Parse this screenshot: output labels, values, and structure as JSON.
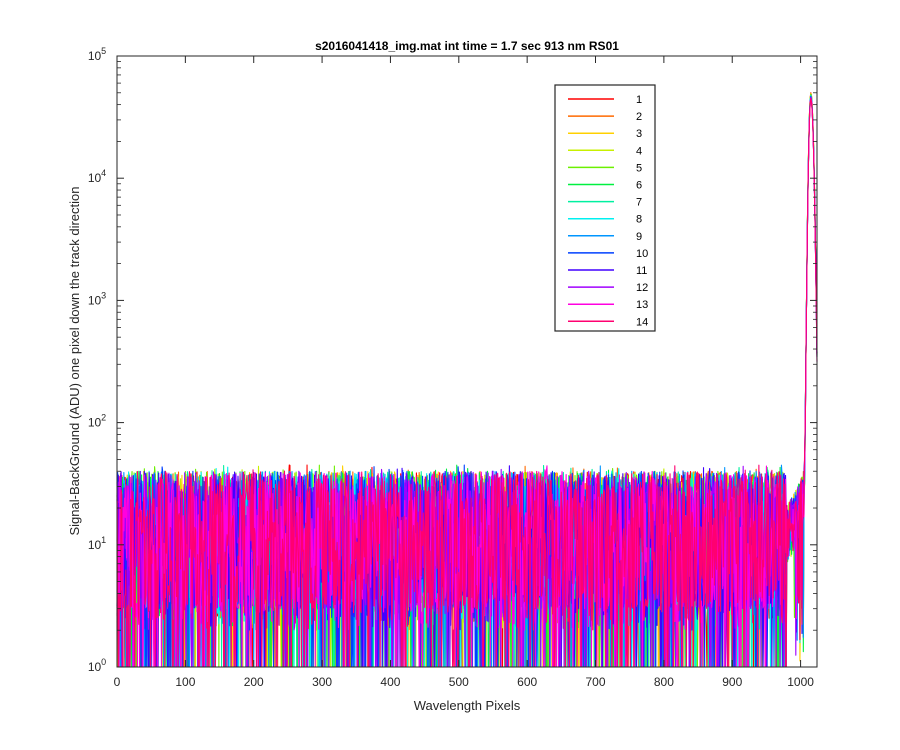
{
  "chart_data": {
    "type": "line",
    "title": "s2016041418_img.mat int time = 1.7 sec  913 nm RS01",
    "xlabel": "Wavelength Pixels",
    "ylabel": "Signal-BackGround (ADU) one pixel down the track direction",
    "xlim": [
      0,
      1024
    ],
    "ylim": [
      1,
      100000
    ],
    "yscale": "log",
    "x_ticks": [
      "0",
      "100",
      "200",
      "300",
      "400",
      "500",
      "600",
      "700",
      "800",
      "900",
      "1000"
    ],
    "y_ticks": [
      {
        "base": "10",
        "exp": "0"
      },
      {
        "base": "10",
        "exp": "1"
      },
      {
        "base": "10",
        "exp": "2"
      },
      {
        "base": "10",
        "exp": "3"
      },
      {
        "base": "10",
        "exp": "4"
      },
      {
        "base": "10",
        "exp": "5"
      }
    ],
    "grid": false,
    "legend_position": "top-right",
    "noise_floor_range": [
      1,
      45
    ],
    "peak": {
      "x": 1015,
      "y": 50000
    },
    "series": [
      {
        "name": "1",
        "color": "#ff0000"
      },
      {
        "name": "2",
        "color": "#ff6a00"
      },
      {
        "name": "3",
        "color": "#ffd000"
      },
      {
        "name": "4",
        "color": "#c8f000"
      },
      {
        "name": "5",
        "color": "#6cf000"
      },
      {
        "name": "6",
        "color": "#00f040"
      },
      {
        "name": "7",
        "color": "#00f0a0"
      },
      {
        "name": "8",
        "color": "#00f0f0"
      },
      {
        "name": "9",
        "color": "#0096ff"
      },
      {
        "name": "10",
        "color": "#0040ff"
      },
      {
        "name": "11",
        "color": "#4000ff"
      },
      {
        "name": "12",
        "color": "#a000ff"
      },
      {
        "name": "13",
        "color": "#ff00e0"
      },
      {
        "name": "14",
        "color": "#ff0070"
      }
    ]
  }
}
